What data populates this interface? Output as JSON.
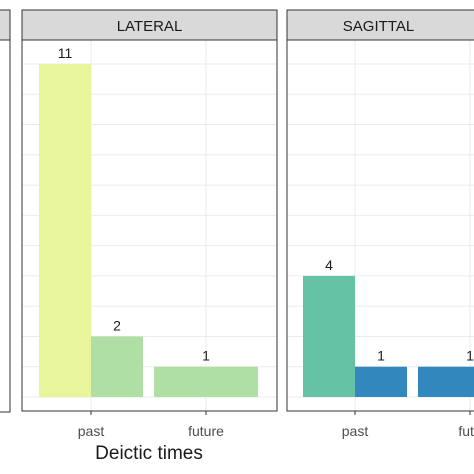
{
  "chart_data": {
    "type": "bar",
    "xlabel": "Deictic times",
    "panels": [
      {
        "title": "LATERAL",
        "categories": [
          "past",
          "future"
        ],
        "bars": [
          {
            "category": "past",
            "value": 11,
            "label": "11",
            "color": "#e8f59b"
          },
          {
            "category": "past",
            "value": 2,
            "label": "2",
            "color": "#b0dfa5"
          },
          {
            "category": "future",
            "value": 1,
            "label": "1",
            "color": "#b0dfa5"
          }
        ]
      },
      {
        "title": "SAGITTAL",
        "categories": [
          "past",
          "futu"
        ],
        "bars": [
          {
            "category": "past",
            "value": 4,
            "label": "4",
            "color": "#66c2a5"
          },
          {
            "category": "past",
            "value": 1,
            "label": "1",
            "color": "#3288bd"
          },
          {
            "category": "futu",
            "value": 1,
            "label": "1",
            "color": "#3288bd"
          }
        ]
      }
    ]
  },
  "colors": {
    "strip_fill": "#d9d9d9",
    "strip_border": "#333333",
    "panel_border": "#333333",
    "grid": "#ebebeb",
    "text": "#1a1a1a"
  }
}
